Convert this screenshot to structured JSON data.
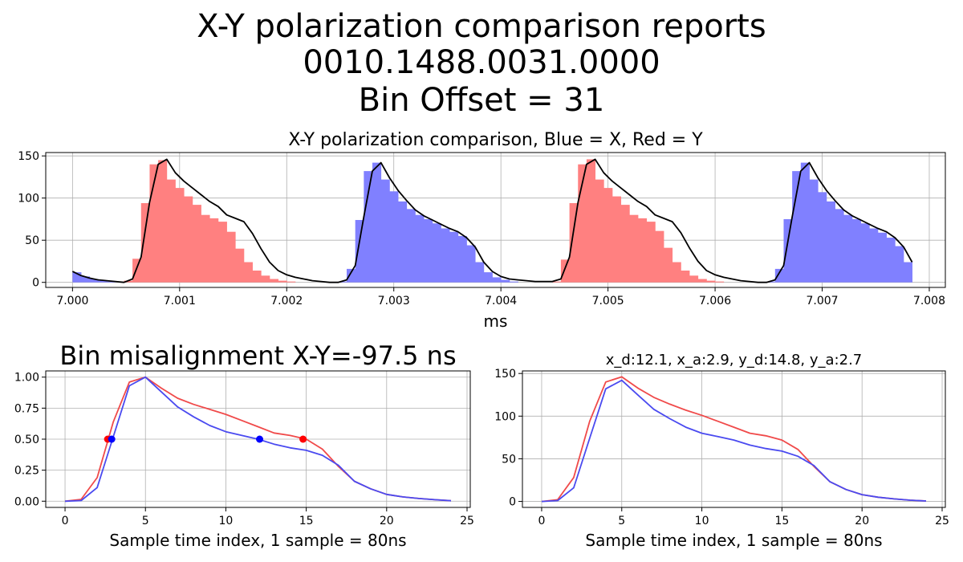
{
  "suptitle": {
    "line1": "X-Y polarization comparison reports",
    "line2": "0010.1488.0031.0000",
    "line3": "Bin Offset = 31"
  },
  "colors": {
    "x": "#4a4af0",
    "y": "#f04a4a",
    "x_fill": "#8080ff",
    "y_fill": "#ff8080",
    "envelope": "#000000",
    "grid": "#b0b0b0"
  },
  "chart_data": [
    {
      "type": "bar",
      "title": "X-Y polarization comparison, Blue = X, Red = Y",
      "xlabel": "ms",
      "ylabel": "",
      "xlim": [
        6.99975,
        7.00815
      ],
      "ylim": [
        -6,
        154
      ],
      "xticks": [
        "7.000",
        "7.001",
        "7.002",
        "7.003",
        "7.004",
        "7.005",
        "7.006",
        "7.007",
        "7.008"
      ],
      "xtick_values": [
        7.0,
        7.001,
        7.002,
        7.003,
        7.004,
        7.005,
        7.006,
        7.007,
        7.008
      ],
      "yticks": [
        "0",
        "50",
        "100",
        "150"
      ],
      "ytick_values": [
        0,
        50,
        100,
        150
      ],
      "grid": true,
      "bin_width_ms": 8e-05,
      "series": [
        {
          "color": "x",
          "x_start": 7.0,
          "values": [
            12,
            7,
            4,
            2,
            1,
            0
          ]
        },
        {
          "color": "y",
          "x_start": 7.00048,
          "values": [
            2,
            28,
            94,
            140,
            145,
            122,
            112,
            102,
            92,
            80,
            76,
            72,
            60,
            40,
            24,
            14,
            8,
            4,
            2,
            1,
            0
          ]
        },
        {
          "color": "x",
          "x_start": 7.00248,
          "values": [
            1,
            16,
            74,
            132,
            142,
            122,
            108,
            96,
            87,
            80,
            75,
            70,
            64,
            60,
            55,
            44,
            24,
            12,
            6,
            3,
            1,
            0
          ]
        },
        {
          "color": "y",
          "x_start": 7.00448,
          "values": [
            1,
            27,
            94,
            140,
            146,
            122,
            112,
            102,
            92,
            80,
            76,
            72,
            61,
            41,
            24,
            14,
            8,
            4,
            2,
            1,
            0
          ]
        },
        {
          "color": "x",
          "x_start": 7.00648,
          "values": [
            1,
            16,
            75,
            132,
            142,
            122,
            107,
            96,
            87,
            80,
            75,
            70,
            64,
            59,
            53,
            43,
            24
          ]
        }
      ],
      "envelope": [
        [
          7.0,
          13
        ],
        [
          7.00008,
          8
        ],
        [
          7.00016,
          5
        ],
        [
          7.00024,
          3
        ],
        [
          7.00032,
          2
        ],
        [
          7.0004,
          1
        ],
        [
          7.00048,
          0
        ],
        [
          7.00056,
          4
        ],
        [
          7.00064,
          30
        ],
        [
          7.00072,
          95
        ],
        [
          7.0008,
          140
        ],
        [
          7.00088,
          146
        ],
        [
          7.00096,
          130
        ],
        [
          7.00104,
          120
        ],
        [
          7.00112,
          112
        ],
        [
          7.0012,
          104
        ],
        [
          7.00128,
          96
        ],
        [
          7.00136,
          90
        ],
        [
          7.00144,
          80
        ],
        [
          7.00152,
          76
        ],
        [
          7.0016,
          72
        ],
        [
          7.00168,
          58
        ],
        [
          7.00176,
          40
        ],
        [
          7.00184,
          24
        ],
        [
          7.00192,
          14
        ],
        [
          7.002,
          9
        ],
        [
          7.00208,
          6
        ],
        [
          7.00216,
          4
        ],
        [
          7.00224,
          2
        ],
        [
          7.00232,
          1
        ],
        [
          7.0024,
          0
        ],
        [
          7.00248,
          0
        ],
        [
          7.00256,
          3
        ],
        [
          7.00264,
          20
        ],
        [
          7.00272,
          78
        ],
        [
          7.0028,
          132
        ],
        [
          7.00288,
          142
        ],
        [
          7.00296,
          124
        ],
        [
          7.00304,
          109
        ],
        [
          7.00312,
          97
        ],
        [
          7.0032,
          86
        ],
        [
          7.00328,
          79
        ],
        [
          7.00336,
          74
        ],
        [
          7.00344,
          69
        ],
        [
          7.00352,
          64
        ],
        [
          7.0036,
          60
        ],
        [
          7.00368,
          53
        ],
        [
          7.00376,
          42
        ],
        [
          7.00384,
          24
        ],
        [
          7.00392,
          13
        ],
        [
          7.004,
          7
        ],
        [
          7.00408,
          4
        ],
        [
          7.00416,
          3
        ],
        [
          7.00424,
          2
        ],
        [
          7.00432,
          1
        ],
        [
          7.0044,
          1
        ],
        [
          7.00448,
          1
        ],
        [
          7.00456,
          4
        ],
        [
          7.00464,
          30
        ],
        [
          7.00472,
          95
        ],
        [
          7.0048,
          140
        ],
        [
          7.00488,
          146
        ],
        [
          7.00496,
          130
        ],
        [
          7.00504,
          120
        ],
        [
          7.00512,
          112
        ],
        [
          7.0052,
          104
        ],
        [
          7.00528,
          96
        ],
        [
          7.00536,
          90
        ],
        [
          7.00544,
          80
        ],
        [
          7.00552,
          76
        ],
        [
          7.0056,
          72
        ],
        [
          7.00568,
          59
        ],
        [
          7.00576,
          41
        ],
        [
          7.00584,
          25
        ],
        [
          7.00592,
          14
        ],
        [
          7.006,
          9
        ],
        [
          7.00608,
          6
        ],
        [
          7.00616,
          4
        ],
        [
          7.00624,
          2
        ],
        [
          7.00632,
          1
        ],
        [
          7.0064,
          0
        ],
        [
          7.00648,
          0
        ],
        [
          7.00656,
          3
        ],
        [
          7.00664,
          20
        ],
        [
          7.00672,
          78
        ],
        [
          7.0068,
          132
        ],
        [
          7.00688,
          142
        ],
        [
          7.00696,
          124
        ],
        [
          7.00704,
          109
        ],
        [
          7.00712,
          97
        ],
        [
          7.0072,
          86
        ],
        [
          7.00728,
          79
        ],
        [
          7.00736,
          74
        ],
        [
          7.00744,
          69
        ],
        [
          7.00752,
          64
        ],
        [
          7.0076,
          60
        ],
        [
          7.00768,
          53
        ],
        [
          7.00776,
          42
        ],
        [
          7.00784,
          24
        ]
      ]
    },
    {
      "type": "line",
      "title": "Bin misalignment X-Y=-97.5 ns",
      "xlabel": "Sample time index, 1 sample = 80ns",
      "ylabel": "",
      "xlim": [
        -1.2,
        25.2
      ],
      "ylim": [
        -0.05,
        1.05
      ],
      "xticks": [
        "0",
        "5",
        "10",
        "15",
        "20",
        "25"
      ],
      "xtick_values": [
        0,
        5,
        10,
        15,
        20,
        25
      ],
      "yticks": [
        "0.00",
        "0.25",
        "0.50",
        "0.75",
        "1.00"
      ],
      "ytick_values": [
        0,
        0.25,
        0.5,
        0.75,
        1.0
      ],
      "grid": true,
      "x": [
        0,
        1,
        2,
        3,
        4,
        5,
        6,
        7,
        8,
        9,
        10,
        11,
        12,
        13,
        14,
        15,
        16,
        17,
        18,
        19,
        20,
        21,
        22,
        23,
        24
      ],
      "series": [
        {
          "color": "y",
          "values": [
            0,
            0.015,
            0.19,
            0.64,
            0.96,
            1.0,
            0.91,
            0.83,
            0.78,
            0.74,
            0.7,
            0.65,
            0.6,
            0.55,
            0.53,
            0.5,
            0.42,
            0.28,
            0.16,
            0.1,
            0.055,
            0.035,
            0.022,
            0.012,
            0.004
          ]
        },
        {
          "color": "x",
          "values": [
            0,
            0.005,
            0.11,
            0.52,
            0.93,
            1.0,
            0.88,
            0.76,
            0.68,
            0.61,
            0.56,
            0.53,
            0.5,
            0.46,
            0.43,
            0.41,
            0.37,
            0.29,
            0.16,
            0.1,
            0.055,
            0.035,
            0.022,
            0.012,
            0.004
          ]
        }
      ],
      "markers": [
        {
          "color": "y",
          "x": 2.65,
          "y": 0.5
        },
        {
          "color": "y",
          "x": 14.8,
          "y": 0.5
        },
        {
          "color": "x",
          "x": 2.9,
          "y": 0.5
        },
        {
          "color": "x",
          "x": 12.1,
          "y": 0.5
        }
      ]
    },
    {
      "type": "line",
      "title": "x_d:12.1, x_a:2.9, y_d:14.8, y_a:2.7",
      "xlabel": "Sample time index, 1 sample = 80ns",
      "ylabel": "",
      "xlim": [
        -1.2,
        25.2
      ],
      "ylim": [
        -7,
        153
      ],
      "xticks": [
        "0",
        "5",
        "10",
        "15",
        "20",
        "25"
      ],
      "xtick_values": [
        0,
        5,
        10,
        15,
        20,
        25
      ],
      "yticks": [
        "0",
        "50",
        "100",
        "150"
      ],
      "ytick_values": [
        0,
        50,
        100,
        150
      ],
      "grid": true,
      "x": [
        0,
        1,
        2,
        3,
        4,
        5,
        6,
        7,
        8,
        9,
        10,
        11,
        12,
        13,
        14,
        15,
        16,
        17,
        18,
        19,
        20,
        21,
        22,
        23,
        24
      ],
      "series": [
        {
          "color": "y",
          "values": [
            0,
            2,
            28,
            94,
            140,
            146,
            133,
            122,
            114,
            107,
            101,
            94,
            87,
            80,
            77,
            72,
            61,
            41,
            23,
            14,
            8,
            5,
            3,
            1.5,
            0.5
          ]
        },
        {
          "color": "x",
          "values": [
            0,
            1,
            16,
            74,
            132,
            142,
            125,
            108,
            97,
            87,
            80,
            76,
            72,
            66,
            62,
            59,
            53,
            42,
            23,
            14,
            8,
            5,
            3,
            1.5,
            0.5
          ]
        }
      ]
    }
  ]
}
